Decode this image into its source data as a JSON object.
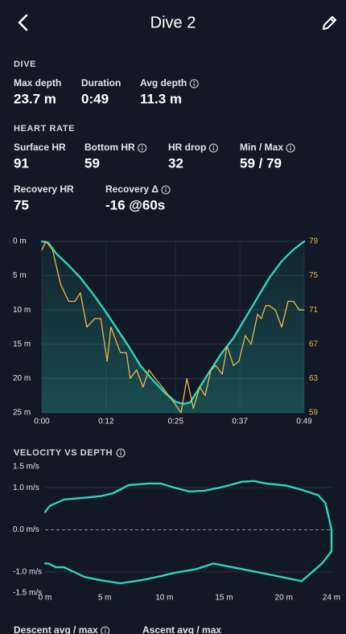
{
  "header": {
    "title": "Dive 2"
  },
  "dive": {
    "heading": "DIVE",
    "stats": [
      {
        "label": "Max depth",
        "value": "23.7 m"
      },
      {
        "label": "Duration",
        "value": "0:49"
      },
      {
        "label": "Avg depth",
        "value": "11.3 m",
        "info": true
      }
    ]
  },
  "heart_rate": {
    "heading": "HEART RATE",
    "stats": [
      {
        "label": "Surface HR",
        "value": "91"
      },
      {
        "label": "Bottom HR",
        "value": "59",
        "info": true
      },
      {
        "label": "HR drop",
        "value": "32",
        "info": true
      },
      {
        "label": "Min / Max",
        "value": "59 / 79",
        "info": true
      },
      {
        "label": "Recovery HR",
        "value": "75"
      },
      {
        "label": "Recovery Δ",
        "value": "-16 @60s",
        "info": true
      }
    ]
  },
  "chart_data": [
    {
      "type": "line",
      "xlim": [
        0,
        49
      ],
      "xticks": [
        {
          "value": 0,
          "label": "0:00"
        },
        {
          "value": 12,
          "label": "0:12"
        },
        {
          "value": 25,
          "label": "0:25"
        },
        {
          "value": 37,
          "label": "0:37"
        },
        {
          "value": 49,
          "label": "0:49"
        }
      ],
      "ylim": [
        0,
        25
      ],
      "y_inverted": true,
      "yticks": [
        {
          "value": 0,
          "label": "0 m"
        },
        {
          "value": 5,
          "label": "5 m"
        },
        {
          "value": 10,
          "label": "10 m"
        },
        {
          "value": 15,
          "label": "15 m"
        },
        {
          "value": 20,
          "label": "20 m"
        },
        {
          "value": 25,
          "label": "25 m"
        }
      ],
      "y2lim": [
        59,
        79
      ],
      "y2ticks": [
        59,
        63,
        67,
        71,
        75,
        79
      ],
      "grid": true,
      "series": [
        {
          "color": "#2dd4bf",
          "fill": true,
          "x": [
            0,
            1.2,
            2.7,
            5,
            7.2,
            9.5,
            11.7,
            14,
            16.2,
            18.5,
            20.7,
            23,
            25,
            26.5,
            27.7,
            29,
            31,
            33.5,
            35.8,
            38,
            40.3,
            42.5,
            44.8,
            47,
            49
          ],
          "values": [
            0,
            0.2,
            1.8,
            3.5,
            5.3,
            7.6,
            10,
            12.7,
            15.3,
            18.2,
            20.2,
            22.1,
            23.4,
            23.7,
            23.5,
            21.9,
            19.4,
            16.4,
            14.1,
            11.2,
            8.2,
            5.3,
            2.9,
            1.2,
            0
          ]
        },
        {
          "color": "#e8b84a",
          "axis": "y2",
          "x": [
            0,
            0.8,
            2.0,
            3.5,
            5.0,
            6.2,
            7.2,
            8.4,
            9.9,
            11.0,
            12.2,
            12.9,
            14.7,
            15.8,
            16.5,
            17.7,
            18.9,
            20.0,
            21.2,
            22.5,
            23.7,
            24.9,
            26.0,
            27.1,
            28.3,
            29.5,
            30.5,
            31.6,
            32.5,
            33.7,
            34.6,
            35.8,
            36.8,
            38.0,
            39.1,
            40.3,
            41.0,
            41.8,
            42.5,
            43.6,
            44.8,
            46.0,
            47.0,
            48.1,
            49.0
          ],
          "values": [
            78,
            79,
            78,
            74,
            72,
            72,
            73,
            69,
            70,
            70,
            65,
            69,
            66,
            66,
            63,
            64,
            62,
            64,
            63,
            62,
            61,
            60,
            59,
            63,
            59.5,
            62,
            61,
            64,
            64.5,
            63.5,
            66.8,
            64.5,
            65,
            68,
            67,
            70.5,
            70,
            71.5,
            71.5,
            71,
            69,
            72,
            72,
            71,
            71
          ]
        }
      ]
    },
    {
      "type": "line",
      "title": "VELOCITY VS DEPTH",
      "info": true,
      "xlim": [
        0,
        24
      ],
      "xticks": [
        {
          "value": 0,
          "label": "0 m"
        },
        {
          "value": 5,
          "label": "5 m"
        },
        {
          "value": 10,
          "label": "10 m"
        },
        {
          "value": 15,
          "label": "15 m"
        },
        {
          "value": 20,
          "label": "20 m"
        },
        {
          "value": 24,
          "label": "24 m"
        }
      ],
      "ylim": [
        -1.5,
        1.5
      ],
      "yticks": [
        {
          "value": 1.5,
          "label": "1.5 m/s"
        },
        {
          "value": 1,
          "label": "1.0 m/s"
        },
        {
          "value": 0,
          "label": "0.0 m/s"
        },
        {
          "value": -1,
          "label": "-1.0 m/s"
        },
        {
          "value": -1.5,
          "label": "-1.5 m/s"
        }
      ],
      "grid": true,
      "zero_line": "dashed",
      "series": [
        {
          "color": "#2dd4bf",
          "x": [
            0,
            0.4,
            1.6,
            3.3,
            4.7,
            5.7,
            7.0,
            8.7,
            9.7,
            10.7,
            12.1,
            13.4,
            14.8,
            16.5,
            17.5,
            18.5,
            20.2,
            21.5,
            22.9,
            23.5,
            24,
            24,
            23.2,
            21.5,
            19.1,
            16.8,
            14.1,
            12.7,
            10.7,
            9.7,
            8.0,
            6.3,
            4.7,
            3.3,
            1.6,
            0.9,
            0.3,
            0
          ],
          "values": [
            0.42,
            0.57,
            0.72,
            0.76,
            0.8,
            0.87,
            1.06,
            1.1,
            1.1,
            1.01,
            0.91,
            0.93,
            1.01,
            1.14,
            1.16,
            1.1,
            1.05,
            0.95,
            0.82,
            0.63,
            0,
            -0.51,
            -0.8,
            -1.22,
            -1.08,
            -0.95,
            -0.8,
            -0.93,
            -1.03,
            -1.1,
            -1.2,
            -1.27,
            -1.2,
            -1.12,
            -0.89,
            -0.89,
            -0.8,
            -0.8
          ]
        }
      ]
    }
  ],
  "footer": {
    "stats": [
      {
        "label": "Descent avg / max",
        "info": true
      },
      {
        "label": "Ascent avg / max"
      }
    ]
  }
}
